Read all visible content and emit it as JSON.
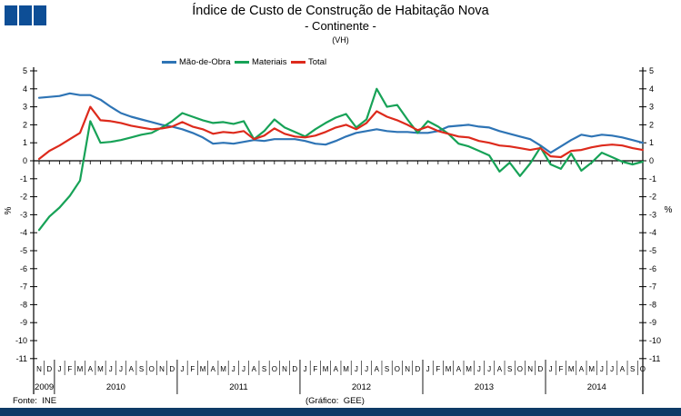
{
  "header": {
    "title": "Índice de Custo de Construção de Habitação Nova",
    "subtitle": "- Continente -",
    "unit_note": "(VH)"
  },
  "footer": {
    "source": "Fonte:  INE",
    "credit": "(Gráfico:  GEE)"
  },
  "theme": {
    "logo_color": "#0d4e96",
    "bottom_bar_color": "#0e3a66",
    "axis_color": "#000000"
  },
  "chart_data": {
    "type": "line",
    "title": "Índice de Custo de Construção de Habitação Nova - Continente - (VH)",
    "xlabel": "",
    "ylabel": "%",
    "percent_label": "%",
    "ylim": [
      -11,
      5
    ],
    "ytick_step": 1,
    "grid": false,
    "legend_position": "top",
    "x_months": [
      "N",
      "D",
      "J",
      "F",
      "M",
      "A",
      "M",
      "J",
      "J",
      "A",
      "S",
      "O",
      "N",
      "D",
      "J",
      "F",
      "M",
      "A",
      "M",
      "J",
      "J",
      "A",
      "S",
      "O",
      "N",
      "D",
      "J",
      "F",
      "M",
      "A",
      "M",
      "J",
      "J",
      "A",
      "S",
      "O",
      "N",
      "D",
      "J",
      "F",
      "M",
      "A",
      "M",
      "J",
      "J",
      "A",
      "S",
      "O",
      "N",
      "D",
      "J",
      "F",
      "M",
      "A",
      "M",
      "J",
      "J",
      "A",
      "S",
      "O"
    ],
    "years": [
      {
        "label": "2009",
        "start": 0,
        "end": 1
      },
      {
        "label": "2010",
        "start": 2,
        "end": 13
      },
      {
        "label": "2011",
        "start": 14,
        "end": 25
      },
      {
        "label": "2012",
        "start": 26,
        "end": 37
      },
      {
        "label": "2013",
        "start": 38,
        "end": 49
      },
      {
        "label": "2014",
        "start": 50,
        "end": 59
      }
    ],
    "series": [
      {
        "name": "Mão-de-Obra",
        "color": "#2e74b5",
        "values": [
          3.5,
          3.55,
          3.6,
          3.75,
          3.65,
          3.65,
          3.4,
          3.0,
          2.65,
          2.45,
          2.3,
          2.15,
          2.0,
          1.9,
          1.75,
          1.55,
          1.3,
          0.95,
          1.0,
          0.95,
          1.05,
          1.15,
          1.1,
          1.2,
          1.2,
          1.2,
          1.1,
          0.95,
          0.9,
          1.1,
          1.35,
          1.55,
          1.65,
          1.75,
          1.65,
          1.6,
          1.6,
          1.55,
          1.55,
          1.65,
          1.9,
          1.95,
          2.0,
          1.9,
          1.85,
          1.65,
          1.5,
          1.35,
          1.2,
          0.85,
          0.45,
          0.8,
          1.15,
          1.45,
          1.35,
          1.45,
          1.4,
          1.3,
          1.15,
          1.0
        ]
      },
      {
        "name": "Materiais",
        "color": "#17a257",
        "values": [
          -3.85,
          -3.1,
          -2.6,
          -1.95,
          -1.1,
          2.2,
          1.0,
          1.05,
          1.15,
          1.3,
          1.45,
          1.55,
          1.85,
          2.2,
          2.65,
          2.45,
          2.25,
          2.1,
          2.15,
          2.05,
          2.2,
          1.2,
          1.65,
          2.3,
          1.85,
          1.6,
          1.35,
          1.75,
          2.1,
          2.4,
          2.6,
          1.85,
          2.3,
          4.0,
          3.0,
          3.1,
          2.3,
          1.55,
          2.2,
          1.9,
          1.5,
          0.95,
          0.8,
          0.55,
          0.3,
          -0.6,
          -0.1,
          -0.85,
          -0.15,
          0.75,
          -0.2,
          -0.45,
          0.4,
          -0.55,
          -0.1,
          0.45,
          0.2,
          -0.05,
          -0.2,
          -0.05
        ]
      },
      {
        "name": "Total",
        "color": "#dd2a1c",
        "values": [
          0.1,
          0.55,
          0.85,
          1.2,
          1.55,
          3.0,
          2.25,
          2.2,
          2.1,
          1.95,
          1.85,
          1.75,
          1.8,
          1.9,
          2.15,
          1.9,
          1.75,
          1.5,
          1.6,
          1.55,
          1.65,
          1.2,
          1.4,
          1.8,
          1.5,
          1.35,
          1.3,
          1.4,
          1.6,
          1.85,
          2.0,
          1.75,
          2.1,
          2.75,
          2.45,
          2.25,
          2.0,
          1.7,
          1.9,
          1.65,
          1.5,
          1.35,
          1.3,
          1.1,
          1.0,
          0.85,
          0.8,
          0.7,
          0.6,
          0.7,
          0.25,
          0.2,
          0.55,
          0.6,
          0.75,
          0.85,
          0.9,
          0.85,
          0.7,
          0.6
        ]
      }
    ]
  }
}
